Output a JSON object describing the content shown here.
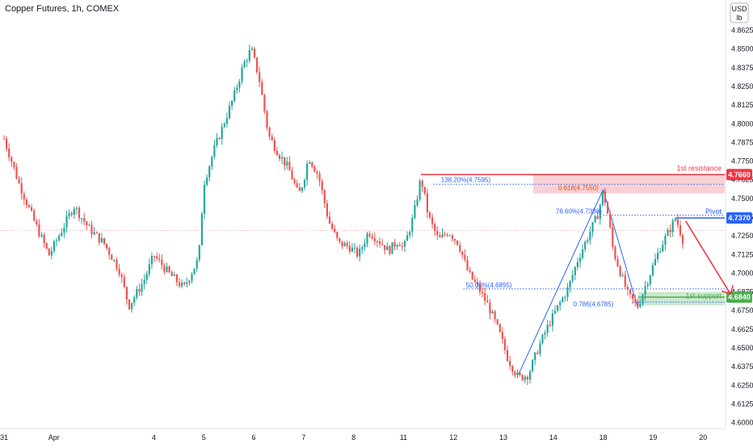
{
  "header": {
    "title": "Copper Futures, 1h, COMEX"
  },
  "axis_unit": {
    "currency": "USD",
    "unit": "lb"
  },
  "colors": {
    "bull": "#26a69a",
    "bear": "#ef5350",
    "resistance": "#f23645",
    "resistance_zone": "#f8c8cc",
    "pivot": "#2962ff",
    "support": "#4caf50",
    "support_zone": "#c8e6c9",
    "fib": "#2962ff",
    "fib_orange": "#e65100",
    "arrow": "#f23645",
    "current_price_line": "#f23645"
  },
  "levels": [
    {
      "id": "resistance",
      "name": "1st resistance",
      "badge": "4.7660"
    },
    {
      "id": "pivot",
      "name": "Pivot",
      "badge": "4.7370"
    },
    {
      "id": "support",
      "name": "1st support",
      "badge": "4.6840"
    }
  ],
  "annotations": {
    "fib_1382": "138.20%(4.7595)",
    "fib_0618": "0.618(4.7550)",
    "fib_786pct": "78.60%(4.7388)",
    "fib_50pct": "50.00%(4.6895)",
    "fib_0786": "0.786(4.6785)"
  },
  "chart_data": {
    "type": "candlestick",
    "title": "Copper Futures, 1h, COMEX",
    "ylim": [
      4.6,
      4.87
    ],
    "y_ticks": [
      "4.8625",
      "4.8500",
      "4.8375",
      "4.8250",
      "4.8125",
      "4.8000",
      "4.7875",
      "4.7750",
      "4.7625",
      "4.7500",
      "4.7375",
      "4.7250",
      "4.7125",
      "4.7000",
      "4.6875",
      "4.6750",
      "4.6625",
      "4.6500",
      "4.6375",
      "4.6250",
      "4.6125",
      "4.6000"
    ],
    "x_ticks": [
      "31",
      "Apr",
      "4",
      "5",
      "6",
      "7",
      "8",
      "11",
      "12",
      "13",
      "14",
      "18",
      "19",
      "20"
    ],
    "x_tick_positions": [
      0,
      1,
      3,
      4,
      5,
      6,
      7,
      8,
      9,
      10,
      11,
      12,
      13,
      14
    ],
    "price_path": [
      [
        0.0,
        4.79
      ],
      [
        0.3,
        4.76
      ],
      [
        0.6,
        4.735
      ],
      [
        0.9,
        4.712
      ],
      [
        1.1,
        4.725
      ],
      [
        1.4,
        4.745
      ],
      [
        1.7,
        4.73
      ],
      [
        2.0,
        4.72
      ],
      [
        2.3,
        4.703
      ],
      [
        2.5,
        4.678
      ],
      [
        2.8,
        4.695
      ],
      [
        3.0,
        4.712
      ],
      [
        3.3,
        4.7
      ],
      [
        3.6,
        4.69
      ],
      [
        3.9,
        4.71
      ],
      [
        4.0,
        4.76
      ],
      [
        4.2,
        4.782
      ],
      [
        4.4,
        4.8
      ],
      [
        4.6,
        4.818
      ],
      [
        4.8,
        4.84
      ],
      [
        4.95,
        4.85
      ],
      [
        5.1,
        4.832
      ],
      [
        5.3,
        4.792
      ],
      [
        5.5,
        4.78
      ],
      [
        5.7,
        4.77
      ],
      [
        5.9,
        4.752
      ],
      [
        6.0,
        4.762
      ],
      [
        6.1,
        4.778
      ],
      [
        6.3,
        4.765
      ],
      [
        6.5,
        4.735
      ],
      [
        6.7,
        4.72
      ],
      [
        6.9,
        4.718
      ],
      [
        7.1,
        4.712
      ],
      [
        7.3,
        4.728
      ],
      [
        7.5,
        4.722
      ],
      [
        7.7,
        4.715
      ],
      [
        7.9,
        4.722
      ],
      [
        8.0,
        4.716
      ],
      [
        8.2,
        4.738
      ],
      [
        8.35,
        4.764
      ],
      [
        8.5,
        4.738
      ],
      [
        8.7,
        4.722
      ],
      [
        8.9,
        4.728
      ],
      [
        9.1,
        4.72
      ],
      [
        9.3,
        4.7
      ],
      [
        9.5,
        4.69
      ],
      [
        9.7,
        4.678
      ],
      [
        9.9,
        4.662
      ],
      [
        10.1,
        4.642
      ],
      [
        10.3,
        4.63
      ],
      [
        10.5,
        4.632
      ],
      [
        10.7,
        4.65
      ],
      [
        10.9,
        4.665
      ],
      [
        11.1,
        4.678
      ],
      [
        11.3,
        4.69
      ],
      [
        11.5,
        4.71
      ],
      [
        11.7,
        4.725
      ],
      [
        11.9,
        4.74
      ],
      [
        12.0,
        4.755
      ],
      [
        12.1,
        4.738
      ],
      [
        12.2,
        4.715
      ],
      [
        12.35,
        4.7
      ],
      [
        12.5,
        4.685
      ],
      [
        12.7,
        4.678
      ],
      [
        12.85,
        4.692
      ],
      [
        13.0,
        4.705
      ],
      [
        13.15,
        4.718
      ],
      [
        13.3,
        4.727
      ],
      [
        13.45,
        4.737
      ],
      [
        13.6,
        4.722
      ]
    ],
    "levels": {
      "resistance": 4.766,
      "pivot": 4.737,
      "support": 4.684,
      "current": 4.72
    },
    "fib": {
      "l1382": 4.7595,
      "l0618": 4.755,
      "l786": 4.7388,
      "l50": 4.6895,
      "l0786": 4.6785
    }
  }
}
